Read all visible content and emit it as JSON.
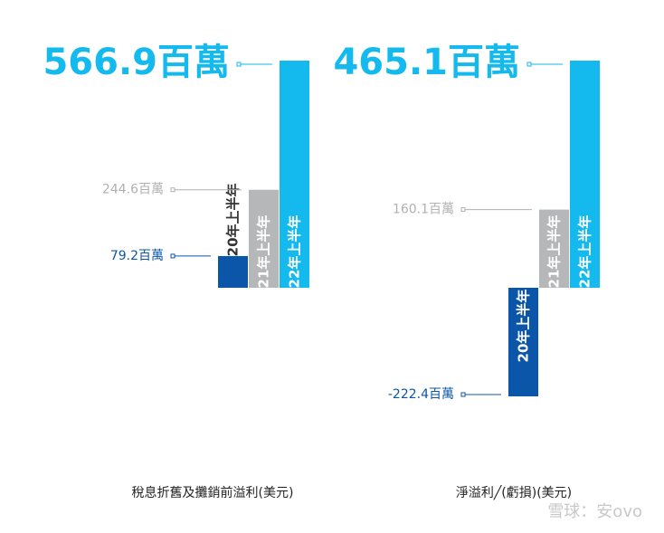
{
  "chart_data": [
    {
      "type": "bar",
      "title": "稅息折舊及攤銷前溢利(美元)",
      "categories": [
        "20年上半年",
        "21年上半年",
        "22年上半年"
      ],
      "values": [
        79.2,
        244.6,
        566.9
      ],
      "value_labels": [
        "79.2百萬",
        "244.6百萬",
        "566.9百萬"
      ],
      "colors": [
        "#0b56a9",
        "#b6b7b9",
        "#14b9ee"
      ]
    },
    {
      "type": "bar",
      "title": "淨溢利╱(虧損)(美元)",
      "categories": [
        "20年上半年",
        "21年上半年",
        "22年上半年"
      ],
      "values": [
        -222.4,
        160.1,
        465.1
      ],
      "value_labels": [
        "-222.4百萬",
        "160.1百萬",
        "465.1百萬"
      ],
      "colors": [
        "#0b56a9",
        "#b6b7b9",
        "#14b9ee"
      ]
    }
  ],
  "watermark": "雪球：安ovo"
}
